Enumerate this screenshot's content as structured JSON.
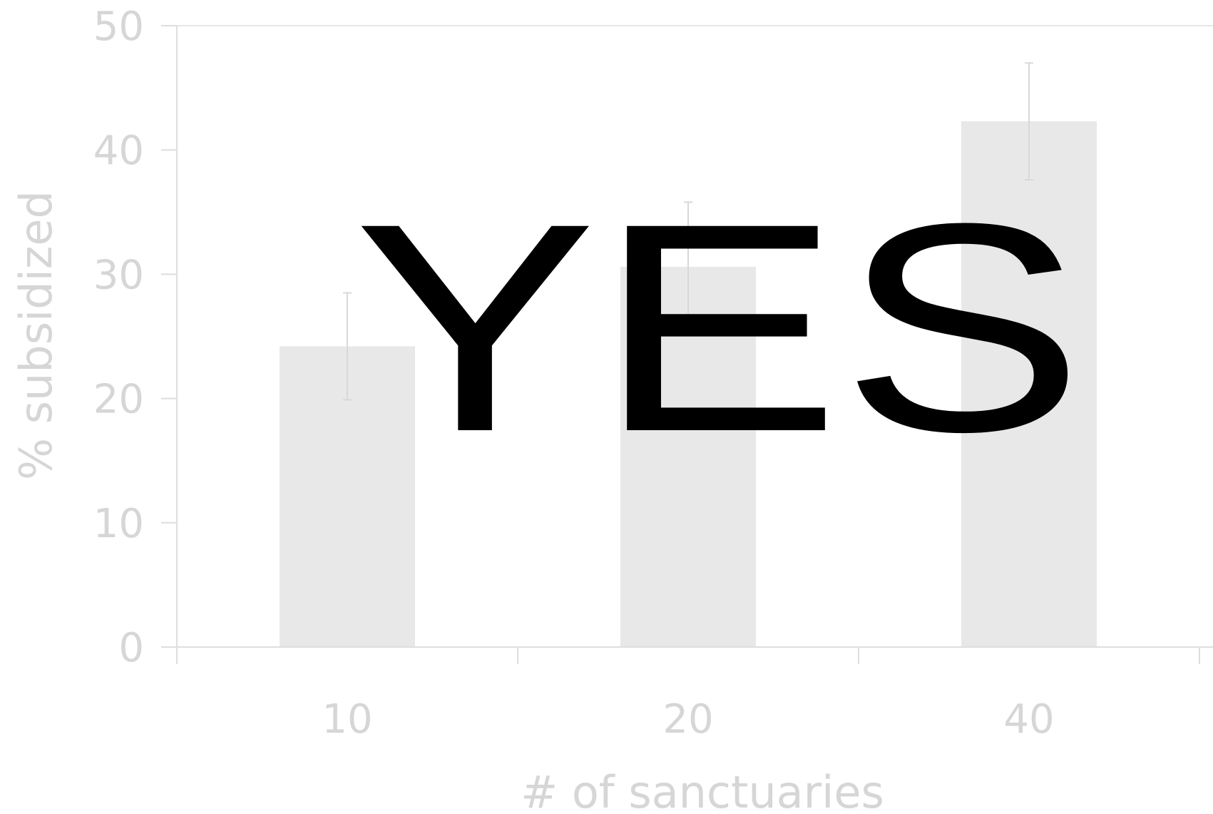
{
  "chart_data": {
    "type": "bar",
    "categories": [
      "10",
      "20",
      "40"
    ],
    "values": [
      24.2,
      30.6,
      42.3
    ],
    "errors": [
      4.3,
      5.2,
      4.7
    ],
    "xlabel": "# of sanctuaries",
    "ylabel": "% subsidized",
    "ylim": [
      0,
      50
    ],
    "yticks": [
      0,
      10,
      20,
      30,
      40,
      50
    ],
    "grid": false,
    "overlay_text": "YES",
    "colors": {
      "bar": "#e8e8e8",
      "axis": "#dedede",
      "text": "#d6d6d6",
      "overlay": "#000000"
    }
  }
}
